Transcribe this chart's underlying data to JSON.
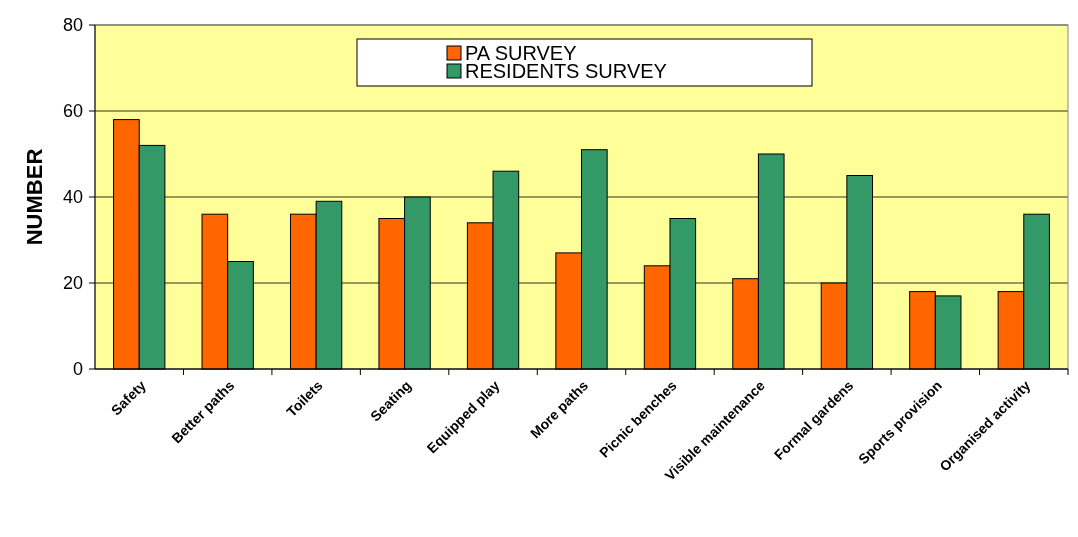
{
  "chart_data": {
    "type": "bar",
    "ylabel": "NUMBER",
    "categories": [
      "Safety",
      "Better paths",
      "Toilets",
      "Seating",
      "Equipped play",
      "More paths",
      "Picnic benches",
      "Visible maintenance",
      "Formal gardens",
      "Sports provision",
      "Organised activity"
    ],
    "series": [
      {
        "name": "PA SURVEY",
        "color": "#ff6600",
        "values": [
          58,
          36,
          36,
          35,
          34,
          27,
          24,
          21,
          20,
          18,
          18
        ]
      },
      {
        "name": "RESIDENTS SURVEY",
        "color": "#339966",
        "values": [
          52,
          25,
          39,
          40,
          46,
          51,
          35,
          50,
          45,
          17,
          36
        ]
      }
    ],
    "ylim": [
      0,
      80
    ],
    "yticks": [
      0,
      20,
      40,
      60,
      80
    ],
    "grid": "y",
    "legend": "top"
  }
}
